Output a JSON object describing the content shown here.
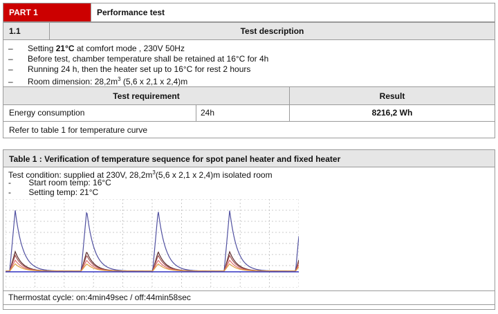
{
  "part": {
    "label": "PART 1",
    "title": "Performance test",
    "brand_color": "#cc0000"
  },
  "section": {
    "number": "1.1",
    "heading": "Test description"
  },
  "description": {
    "bullet": "–",
    "items": [
      {
        "pre": "Setting ",
        "bold": "21°C",
        "post": " at comfort mode , 230V 50Hz"
      },
      {
        "pre": "Before test, chamber temperature shall be retained at 16°C for 4h",
        "bold": "",
        "post": ""
      },
      {
        "pre": "Running 24 h,  then  the heater  set up  to 16°C for rest 2 hours",
        "bold": "",
        "post": ""
      },
      {
        "pre": "Room dimension: 28,2m",
        "sup": "3",
        "post": " (5,6 x 2,1 x 2,4)m"
      }
    ]
  },
  "requirement_table": {
    "header_requirement": "Test requirement",
    "header_result": "Result",
    "row_label": "Energy consumption",
    "row_duration": "24h",
    "row_result": "8216,2 Wh",
    "note": "Refer to table 1 for temperature curve"
  },
  "table1": {
    "title": "Table 1 : Verification of temperature sequence for spot panel heater and fixed heater",
    "condition_pre": "Test condition: supplied at 230V, 28,2m",
    "condition_sup": "3",
    "condition_post": "(5,6 x 2,1 x 2,4)m isolated room",
    "items": [
      "Start room temp: 16°C",
      "Setting temp: 21°C"
    ],
    "bullet": "-",
    "footer": "Thermostat cycle: on:4min49sec / off:44min58sec"
  },
  "chart_data": {
    "type": "line",
    "title": "",
    "xlabel": "",
    "ylabel": "",
    "grid": true,
    "cycles": 4,
    "series": [
      {
        "color": "#5050a0",
        "peak": 1.0
      },
      {
        "color": "#5a2a2a",
        "peak": 0.32
      },
      {
        "color": "#a05050",
        "peak": 0.26
      },
      {
        "color": "#e07070",
        "peak": 0.18
      },
      {
        "color": "#e0a040",
        "peak": 0.12
      }
    ],
    "baseline_color": "#3030c0"
  }
}
